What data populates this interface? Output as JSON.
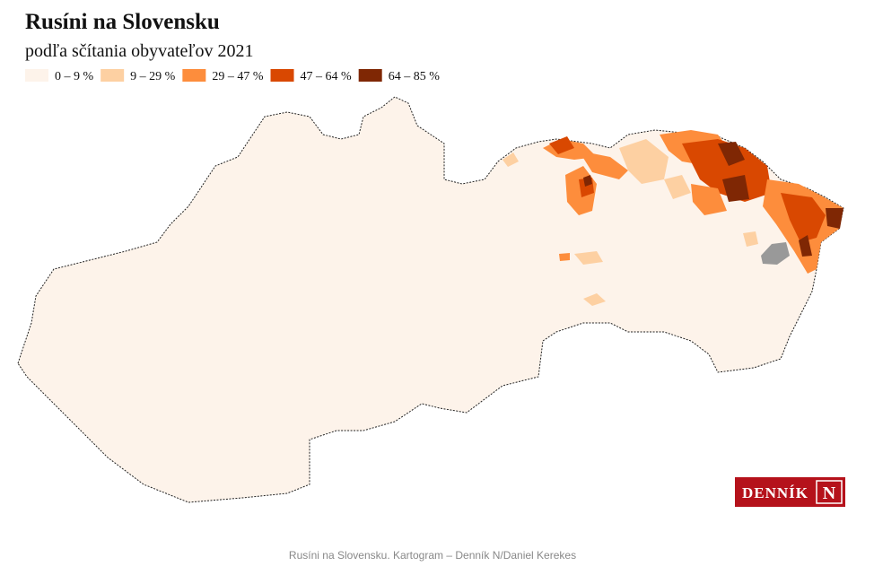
{
  "header": {
    "title": "Rusíni na Slovensku",
    "subtitle": "podľa sčítania obyvateľov 2021"
  },
  "legend": [
    {
      "label": "0 – 9 %",
      "color": "#fdf3ea"
    },
    {
      "label": "9 – 29 %",
      "color": "#fdd0a2"
    },
    {
      "label": "29 – 47 %",
      "color": "#fd8d3c"
    },
    {
      "label": "47 – 64 %",
      "color": "#d94801"
    },
    {
      "label": "64 – 85 %",
      "color": "#7f2704"
    }
  ],
  "logo": {
    "name": "DENNÍK",
    "letter": "N"
  },
  "footer": {
    "caption": "Rusíni na Slovensku. Kartogram – Denník N/Daniel Kerekes"
  }
}
